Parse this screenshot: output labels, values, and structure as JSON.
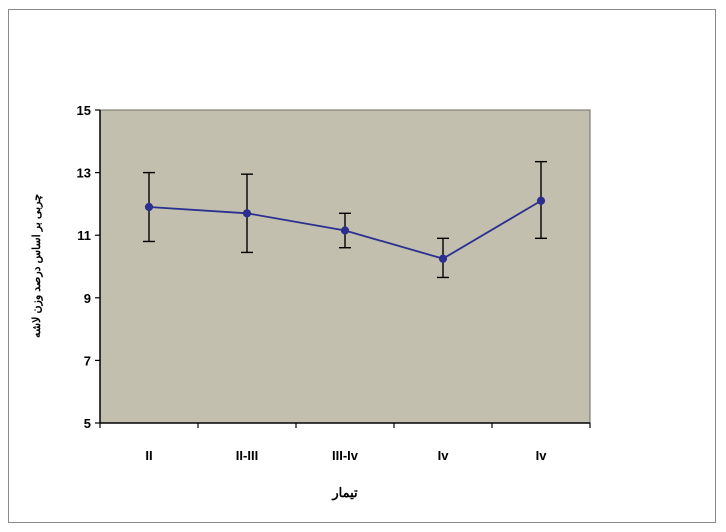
{
  "chart_data": {
    "type": "line",
    "title": "",
    "xlabel": "تیمار",
    "ylabel": "چربی بر اساس درصد وزن لاشه",
    "categories": [
      "II",
      "II-III",
      "III-Iv",
      "Iv",
      "Iv"
    ],
    "series": [
      {
        "values": [
          11.9,
          11.7,
          11.15,
          10.25,
          12.1
        ],
        "error_low": [
          10.8,
          10.45,
          10.6,
          9.65,
          10.9
        ],
        "error_high": [
          13.0,
          12.95,
          11.7,
          10.9,
          13.35
        ],
        "color": "#2b2f8f"
      }
    ],
    "ylim": [
      5,
      15
    ],
    "yticks": [
      "5",
      "7",
      "9",
      "11",
      "13",
      "15"
    ],
    "grid": false,
    "plot_background": "#c2bfae",
    "legend": "none"
  }
}
